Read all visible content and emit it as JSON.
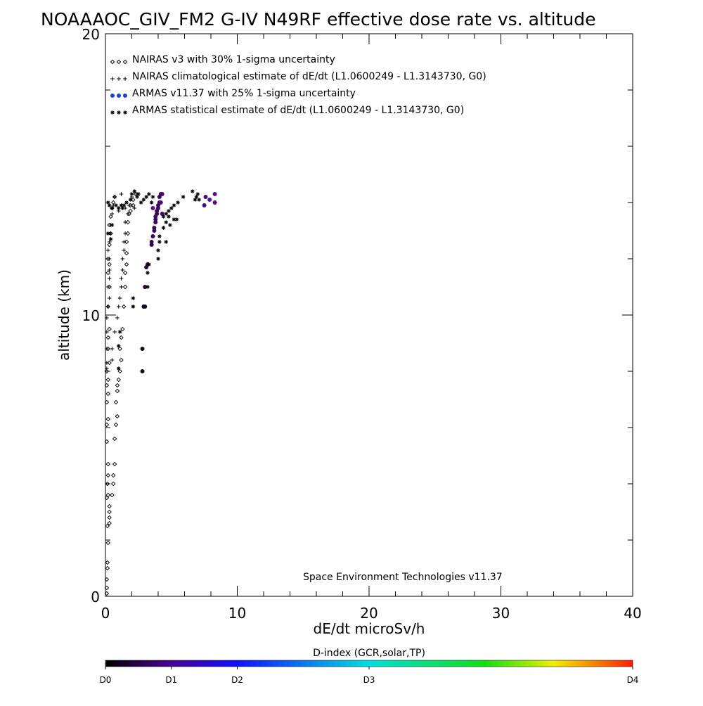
{
  "chart_data": {
    "type": "scatter",
    "title": "NOAAAOC_GIV_FM2 G-IV   N49RF  effective dose rate vs. altitude",
    "xlabel": "dE/dt microSv/h",
    "ylabel": "altitude (km)",
    "xlim": [
      0,
      40
    ],
    "ylim": [
      0,
      20
    ],
    "x_ticks": [
      {
        "value": 0,
        "label": "0"
      },
      {
        "value": 10,
        "label": "10"
      },
      {
        "value": 20,
        "label": "20"
      },
      {
        "value": 30,
        "label": "30"
      },
      {
        "value": 40,
        "label": "40"
      }
    ],
    "y_ticks": [
      {
        "value": 0,
        "label": "0"
      },
      {
        "value": 10,
        "label": "10"
      },
      {
        "value": 20,
        "label": "20"
      }
    ],
    "legend_placement": "top-left",
    "legend": [
      {
        "marker": "diamond",
        "marker_text": "◇◇◇",
        "color": "#000000",
        "label": "NAIRAS v3 with 30% 1-sigma uncertainty"
      },
      {
        "marker": "plus",
        "marker_text": "+++",
        "color": "#000000",
        "label": "NAIRAS climatological estimate of dE/dt (L1.0600249 - L1.3143730, G0)"
      },
      {
        "marker": "dot",
        "marker_text": "●●●",
        "color": "#1f3fd6",
        "label": "ARMAS v11.37 with 25% 1-sigma uncertainty"
      },
      {
        "marker": "asterisk",
        "marker_text": "***",
        "color": "#000000",
        "label": "ARMAS statistical estimate of dE/dt (L1.0600249 - L1.3143730, G0)"
      }
    ],
    "credit": "Space Environment Technologies v11.37",
    "colorbar": {
      "title": "D-index (GCR,solar,TP)",
      "ticks": [
        {
          "pos": 0.0,
          "label": "D0"
        },
        {
          "pos": 0.125,
          "label": "D1"
        },
        {
          "pos": 0.25,
          "label": "D2"
        },
        {
          "pos": 0.5,
          "label": "D3"
        },
        {
          "pos": 1.0,
          "label": "D4"
        }
      ],
      "stops": [
        {
          "offset": 0.0,
          "color": "#000000"
        },
        {
          "offset": 0.12,
          "color": "#4a0090"
        },
        {
          "offset": 0.25,
          "color": "#1010ff"
        },
        {
          "offset": 0.5,
          "color": "#00e0e0"
        },
        {
          "offset": 0.72,
          "color": "#10e010"
        },
        {
          "offset": 0.85,
          "color": "#f0f000"
        },
        {
          "offset": 1.0,
          "color": "#ff1a00"
        }
      ]
    },
    "series": [
      {
        "name": "NAIRAS v3 with 30% 1-sigma uncertainty",
        "marker": "diamond",
        "color": "#000000",
        "points": [
          [
            0.1,
            0.1
          ],
          [
            0.1,
            0.3
          ],
          [
            0.1,
            0.6
          ],
          [
            0.15,
            1.0
          ],
          [
            0.15,
            1.2
          ],
          [
            0.2,
            1.9
          ],
          [
            0.15,
            2.5
          ],
          [
            0.3,
            2.6
          ],
          [
            0.3,
            2.8
          ],
          [
            0.3,
            3.0
          ],
          [
            0.3,
            3.2
          ],
          [
            0.1,
            3.5
          ],
          [
            0.2,
            3.6
          ],
          [
            0.5,
            3.6
          ],
          [
            0.15,
            4.0
          ],
          [
            0.6,
            4.0
          ],
          [
            0.2,
            4.3
          ],
          [
            0.6,
            4.3
          ],
          [
            0.2,
            4.7
          ],
          [
            0.7,
            4.7
          ],
          [
            0.1,
            5.5
          ],
          [
            0.7,
            5.6
          ],
          [
            0.1,
            6.1
          ],
          [
            0.8,
            6.1
          ],
          [
            0.2,
            6.3
          ],
          [
            0.9,
            6.4
          ],
          [
            0.1,
            6.9
          ],
          [
            0.8,
            6.9
          ],
          [
            0.2,
            7.2
          ],
          [
            0.9,
            7.3
          ],
          [
            0.1,
            7.5
          ],
          [
            0.9,
            7.5
          ],
          [
            0.2,
            7.7
          ],
          [
            1.0,
            7.7
          ],
          [
            0.1,
            8.0
          ],
          [
            1.1,
            8.0
          ],
          [
            0.3,
            8.3
          ],
          [
            1.2,
            8.4
          ],
          [
            0.2,
            8.8
          ],
          [
            1.1,
            8.8
          ],
          [
            0.2,
            9.2
          ],
          [
            1.2,
            9.2
          ],
          [
            0.3,
            9.5
          ],
          [
            1.3,
            9.5
          ],
          [
            0.2,
            10.3
          ],
          [
            1.4,
            10.3
          ],
          [
            0.3,
            11.0
          ],
          [
            1.5,
            11.0
          ],
          [
            0.2,
            11.5
          ],
          [
            1.5,
            11.5
          ],
          [
            0.3,
            11.8
          ],
          [
            1.6,
            11.8
          ],
          [
            0.2,
            12.0
          ],
          [
            1.6,
            12.2
          ],
          [
            0.3,
            12.5
          ],
          [
            1.6,
            12.6
          ],
          [
            0.4,
            12.9
          ],
          [
            1.7,
            12.9
          ],
          [
            0.3,
            13.2
          ],
          [
            1.7,
            13.3
          ],
          [
            0.4,
            13.5
          ],
          [
            1.8,
            13.6
          ],
          [
            0.5,
            13.8
          ],
          [
            1.9,
            13.9
          ],
          [
            0.6,
            14.0
          ],
          [
            2.1,
            14.1
          ],
          [
            0.7,
            14.2
          ],
          [
            2.3,
            14.3
          ],
          [
            1.9,
            13.7
          ],
          [
            2.1,
            13.9
          ]
        ]
      },
      {
        "name": "NAIRAS climatological estimate of dE/dt (L1.0600249 - L1.3143730, G0)",
        "marker": "plus",
        "color": "#000000",
        "points": [
          [
            0.1,
            8.1
          ],
          [
            0.1,
            8.3
          ],
          [
            0.5,
            8.4
          ],
          [
            0.1,
            8.8
          ],
          [
            0.5,
            8.8
          ],
          [
            0.1,
            9.4
          ],
          [
            0.7,
            9.4
          ],
          [
            0.1,
            9.9
          ],
          [
            0.9,
            9.9
          ],
          [
            0.2,
            10.3
          ],
          [
            1.0,
            10.3
          ],
          [
            0.3,
            10.6
          ],
          [
            1.1,
            10.6
          ],
          [
            0.2,
            11.0
          ],
          [
            1.2,
            11.0
          ],
          [
            0.3,
            11.3
          ],
          [
            1.2,
            11.3
          ],
          [
            0.3,
            11.6
          ],
          [
            1.3,
            11.6
          ],
          [
            0.3,
            12.0
          ],
          [
            1.3,
            12.0
          ],
          [
            0.2,
            12.3
          ],
          [
            1.4,
            12.3
          ],
          [
            0.3,
            12.6
          ],
          [
            1.4,
            12.6
          ],
          [
            0.4,
            12.9
          ],
          [
            1.5,
            12.9
          ],
          [
            0.4,
            13.2
          ],
          [
            1.5,
            13.3
          ],
          [
            0.5,
            13.6
          ],
          [
            1.7,
            13.6
          ],
          [
            0.6,
            13.9
          ],
          [
            1.8,
            13.9
          ],
          [
            0.7,
            14.2
          ],
          [
            2.0,
            14.2
          ],
          [
            1.2,
            14.3
          ],
          [
            2.4,
            14.3
          ],
          [
            1.5,
            13.8
          ],
          [
            2.2,
            13.8
          ],
          [
            1.0,
            13.7
          ]
        ]
      },
      {
        "name": "ARMAS v11.37 with 25% 1-sigma uncertainty",
        "marker": "dot",
        "colors": [
          "#1a0a2a",
          "#1a0a2a",
          "#1a0a2a",
          "#1a0a2a",
          "#2a0a3a",
          "#2a0a3a",
          "#2a0a3a",
          "#2a0a3a",
          "#3a0a5a",
          "#3a0a5a",
          "#3a0a5a",
          "#3a0a5a",
          "#3a0a5a",
          "#3a0a5a",
          "#3a0a5a",
          "#3a0a5a",
          "#3a0a5a",
          "#3a0a5a",
          "#3a0a5a",
          "#3a0a5a",
          "#3a0a5a",
          "#3a0a5a",
          "#4a0a7a",
          "#4a0a7a",
          "#4a0a7a",
          "#4a0a7a",
          "#4a0a7a",
          "#4a0a7a",
          "#5a1090",
          "#5a1090",
          "#5a1090"
        ],
        "points": [
          [
            2.8,
            8.0
          ],
          [
            2.8,
            8.8
          ],
          [
            2.9,
            10.3
          ],
          [
            3.0,
            10.3
          ],
          [
            3.0,
            11.0
          ],
          [
            3.1,
            11.7
          ],
          [
            3.2,
            11.8
          ],
          [
            3.5,
            12.5
          ],
          [
            3.5,
            12.6
          ],
          [
            3.6,
            12.8
          ],
          [
            3.7,
            13.0
          ],
          [
            3.7,
            13.1
          ],
          [
            3.8,
            13.3
          ],
          [
            3.8,
            13.4
          ],
          [
            3.8,
            13.5
          ],
          [
            3.9,
            13.6
          ],
          [
            3.9,
            13.7
          ],
          [
            4.0,
            13.8
          ],
          [
            4.0,
            13.9
          ],
          [
            4.1,
            14.0
          ],
          [
            4.1,
            14.2
          ],
          [
            4.2,
            14.3
          ],
          [
            4.3,
            13.6
          ],
          [
            4.2,
            14.0
          ],
          [
            4.3,
            14.3
          ],
          [
            7.5,
            13.9
          ],
          [
            7.6,
            14.2
          ],
          [
            8.3,
            14.0
          ],
          [
            8.3,
            14.3
          ],
          [
            7.9,
            14.1
          ],
          [
            3.6,
            13.8
          ]
        ]
      },
      {
        "name": "ARMAS statistical estimate of dE/dt (L1.0600249 - L1.3143730, G0)",
        "marker": "asterisk",
        "color": "#000000",
        "points": [
          [
            1.0,
            8.1
          ],
          [
            1.0,
            8.9
          ],
          [
            1.1,
            9.4
          ],
          [
            2.1,
            10.3
          ],
          [
            2.1,
            10.6
          ],
          [
            3.2,
            11.0
          ],
          [
            3.2,
            11.5
          ],
          [
            3.3,
            11.8
          ],
          [
            4.0,
            12.0
          ],
          [
            4.0,
            12.3
          ],
          [
            4.1,
            12.6
          ],
          [
            4.1,
            12.8
          ],
          [
            4.4,
            13.1
          ],
          [
            4.6,
            13.3
          ],
          [
            4.4,
            13.5
          ],
          [
            4.8,
            13.5
          ],
          [
            4.6,
            13.6
          ],
          [
            4.8,
            13.7
          ],
          [
            5.0,
            13.8
          ],
          [
            5.2,
            13.9
          ],
          [
            5.5,
            14.0
          ],
          [
            5.9,
            14.2
          ],
          [
            6.6,
            14.4
          ],
          [
            6.9,
            14.2
          ],
          [
            7.0,
            14.3
          ],
          [
            6.8,
            14.1
          ],
          [
            7.1,
            14.1
          ],
          [
            3.5,
            14.0
          ],
          [
            3.6,
            14.2
          ],
          [
            2.5,
            14.3
          ],
          [
            2.0,
            14.3
          ],
          [
            2.2,
            14.4
          ],
          [
            2.4,
            14.2
          ],
          [
            1.9,
            14.1
          ],
          [
            1.6,
            14.0
          ],
          [
            1.4,
            13.9
          ],
          [
            1.3,
            13.8
          ],
          [
            1.2,
            13.9
          ],
          [
            1.0,
            13.8
          ],
          [
            0.8,
            13.9
          ],
          [
            0.5,
            13.8
          ],
          [
            0.3,
            13.9
          ],
          [
            0.2,
            14.0
          ],
          [
            0.5,
            13.2
          ],
          [
            0.2,
            12.9
          ],
          [
            0.4,
            12.7
          ],
          [
            3.3,
            14.3
          ],
          [
            3.1,
            14.2
          ],
          [
            2.9,
            14.1
          ],
          [
            2.7,
            14.0
          ],
          [
            5.2,
            13.4
          ],
          [
            5.4,
            13.4
          ],
          [
            4.9,
            13.2
          ],
          [
            4.6,
            12.6
          ]
        ]
      }
    ]
  }
}
